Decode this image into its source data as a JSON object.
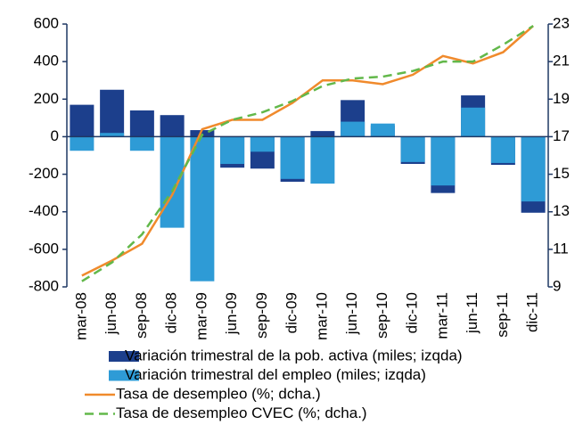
{
  "chart_data": {
    "type": "bar",
    "categories": [
      "mar-08",
      "jun-08",
      "sep-08",
      "dic-08",
      "mar-09",
      "jun-09",
      "sep-09",
      "dic-09",
      "mar-10",
      "jun-10",
      "sep-10",
      "dic-10",
      "mar-11",
      "jun-11",
      "sep-11",
      "dic-11"
    ],
    "series": [
      {
        "name": "Variación trimestral de la pob. activa (miles; izqda)",
        "color": "#1c3f8c",
        "type": "bar",
        "values": [
          170,
          250,
          140,
          115,
          35,
          -165,
          -170,
          -240,
          30,
          195,
          60,
          -145,
          -300,
          220,
          -150,
          -405
        ]
      },
      {
        "name": "Variación trimestral del empleo (miles; izqda)",
        "color": "#2e9bd6",
        "type": "bar",
        "values": [
          -75,
          20,
          -75,
          -485,
          -770,
          -145,
          -80,
          -225,
          -250,
          80,
          70,
          -135,
          -260,
          155,
          -140,
          -345
        ]
      },
      {
        "name": "Tasa de desempleo (%; dcha.)",
        "color": "#f08a2c",
        "type": "line",
        "axis": "y2",
        "values": [
          9.6,
          10.4,
          11.3,
          13.9,
          17.4,
          17.9,
          17.9,
          18.8,
          20.0,
          20.0,
          19.8,
          20.3,
          21.3,
          20.9,
          21.5,
          22.9
        ]
      },
      {
        "name": "Tasa de desempleo CVEC (%; dcha.)",
        "color": "#62b84a",
        "type": "line",
        "axis": "y2",
        "dashed": true,
        "values": [
          9.3,
          10.3,
          11.8,
          14.1,
          17.1,
          17.9,
          18.3,
          18.9,
          19.7,
          20.1,
          20.2,
          20.5,
          21.0,
          21.0,
          21.9,
          22.9
        ]
      }
    ],
    "ylim": [
      -800,
      600
    ],
    "yticks": [
      -800,
      -600,
      -400,
      -200,
      0,
      200,
      400,
      600
    ],
    "y2lim": [
      9,
      23
    ],
    "y2ticks": [
      9,
      11,
      13,
      15,
      17,
      19,
      21,
      23
    ]
  }
}
